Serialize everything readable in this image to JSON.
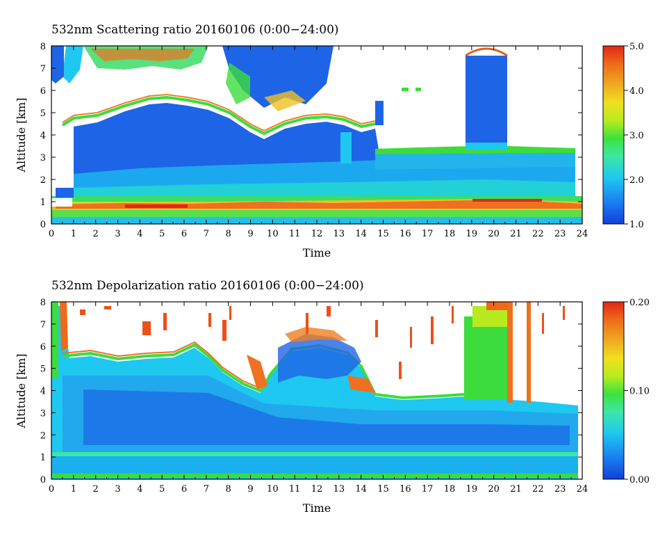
{
  "chart_data": [
    {
      "type": "heatmap",
      "title": "532nm Scattering ratio  20160106 (0:00−24:00)",
      "xlabel": "Time",
      "ylabel": "Altitude [km]",
      "xlim": [
        0,
        24
      ],
      "ylim": [
        0,
        8
      ],
      "x_ticks": [
        "0",
        "1",
        "2",
        "3",
        "4",
        "5",
        "6",
        "7",
        "8",
        "9",
        "10",
        "11",
        "12",
        "13",
        "14",
        "15",
        "16",
        "17",
        "18",
        "19",
        "20",
        "21",
        "22",
        "23",
        "24"
      ],
      "y_ticks": [
        "0",
        "1",
        "2",
        "3",
        "4",
        "5",
        "6",
        "7",
        "8"
      ],
      "colorbar": {
        "min": 1.0,
        "max": 5.0,
        "ticks": [
          "1.0",
          "2.0",
          "3.0",
          "4.0",
          "5.0"
        ]
      },
      "description_features": {
        "boundary_layer_top_km": 1.2,
        "cloud_layer_km": [
          4.2,
          6.0
        ],
        "cloud_layer_hours": [
          1,
          14
        ],
        "elevated_layer_top_km": 3.3,
        "high_cloud_hours": [
          18.8,
          20.5
        ]
      }
    },
    {
      "type": "heatmap",
      "title": "532nm Depolarization ratio  20160106 (0:00−24:00)",
      "xlabel": "Time",
      "ylabel": "Altitude [km]",
      "xlim": [
        0,
        24
      ],
      "ylim": [
        0,
        8
      ],
      "x_ticks": [
        "0",
        "1",
        "2",
        "3",
        "4",
        "5",
        "6",
        "7",
        "8",
        "9",
        "10",
        "11",
        "12",
        "13",
        "14",
        "15",
        "16",
        "17",
        "18",
        "19",
        "20",
        "21",
        "22",
        "23",
        "24"
      ],
      "y_ticks": [
        "0",
        "1",
        "2",
        "3",
        "4",
        "5",
        "6",
        "7",
        "8"
      ],
      "colorbar": {
        "min": 0.0,
        "max": 0.2,
        "ticks": [
          "0.00",
          "0.10",
          "0.20"
        ]
      }
    }
  ],
  "colors": {
    "colormap": [
      "#1040d8",
      "#1a7ef0",
      "#1ec8f0",
      "#3ee6a6",
      "#3ce23c",
      "#b8ea20",
      "#f0e020",
      "#f0a020",
      "#ee6a18",
      "#e02818"
    ]
  }
}
